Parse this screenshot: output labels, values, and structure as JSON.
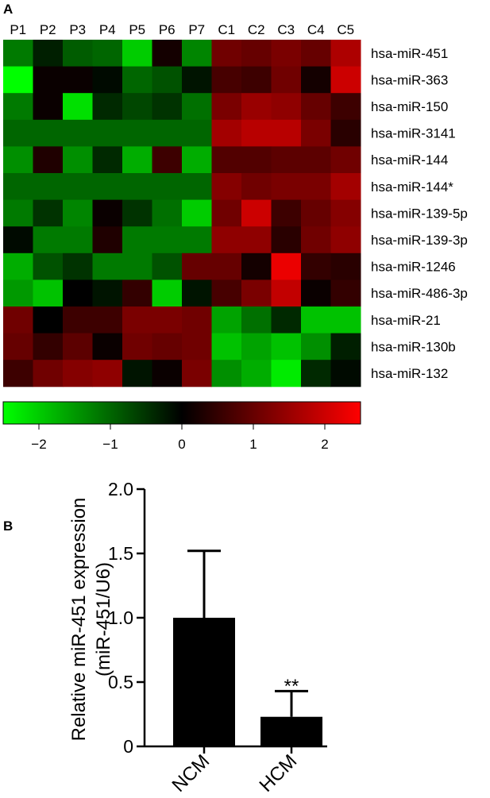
{
  "panels": {
    "a": "A",
    "b": "B"
  },
  "chart_data": [
    {
      "type": "heatmap",
      "columns": [
        "P1",
        "P2",
        "P3",
        "P4",
        "P5",
        "P6",
        "P7",
        "C1",
        "C2",
        "C3",
        "C4",
        "C5"
      ],
      "rows": [
        "hsa-miR-451",
        "hsa-miR-363",
        "hsa-miR-150",
        "hsa-miR-3141",
        "hsa-miR-144",
        "hsa-miR-144*",
        "hsa-miR-139-5p",
        "hsa-miR-139-3p",
        "hsa-miR-1246",
        "hsa-miR-486-3p",
        "hsa-miR-21",
        "hsa-miR-130b",
        "hsa-miR-132"
      ],
      "values": [
        [
          -1.2,
          -0.3,
          -0.9,
          -1.0,
          -2.0,
          0.2,
          -1.3,
          1.1,
          1.0,
          1.2,
          1.0,
          1.7
        ],
        [
          -2.5,
          0.1,
          0.1,
          -0.1,
          -1.0,
          -0.8,
          -0.2,
          0.7,
          0.6,
          1.1,
          0.2,
          2.0
        ],
        [
          -1.2,
          0.1,
          -2.2,
          -0.4,
          -0.7,
          -0.5,
          -1.1,
          1.2,
          1.5,
          1.4,
          1.0,
          0.6
        ],
        [
          -1.0,
          -1.0,
          -1.0,
          -1.0,
          -1.0,
          -1.0,
          -1.0,
          1.6,
          1.8,
          1.8,
          1.2,
          0.4
        ],
        [
          -1.4,
          0.3,
          -1.4,
          -0.4,
          -1.7,
          0.6,
          -1.7,
          0.8,
          0.8,
          0.9,
          0.9,
          1.1
        ],
        [
          -1.0,
          -1.0,
          -1.0,
          -1.0,
          -1.0,
          -1.0,
          -1.0,
          1.3,
          1.1,
          1.2,
          1.2,
          1.6
        ],
        [
          -1.2,
          -0.5,
          -1.3,
          0.1,
          -0.5,
          -1.1,
          -2.0,
          1.1,
          2.0,
          0.6,
          1.0,
          1.3
        ],
        [
          -0.1,
          -1.2,
          -1.2,
          0.3,
          -1.2,
          -1.2,
          -1.2,
          1.4,
          1.4,
          0.4,
          1.1,
          1.4
        ],
        [
          -1.7,
          -0.8,
          -0.5,
          -1.2,
          -1.2,
          -0.8,
          1.0,
          1.0,
          0.2,
          2.3,
          0.5,
          0.4
        ],
        [
          -1.5,
          -1.9,
          0.0,
          -0.2,
          0.5,
          -2.0,
          -0.2,
          0.7,
          1.2,
          1.9,
          0.1,
          0.5
        ],
        [
          1.1,
          0.0,
          0.6,
          0.6,
          1.2,
          1.2,
          1.1,
          -1.6,
          -1.1,
          -0.4,
          -1.9,
          -1.9
        ],
        [
          1.0,
          0.5,
          0.9,
          0.1,
          1.1,
          1.0,
          1.1,
          -1.9,
          -1.6,
          -1.9,
          -1.4,
          -0.3
        ],
        [
          0.6,
          1.1,
          1.3,
          1.4,
          -0.2,
          0.1,
          1.2,
          -1.4,
          -1.7,
          -2.3,
          -0.4,
          -0.1
        ]
      ],
      "colorbar": {
        "min": -2.5,
        "max": 2.5,
        "ticks": [
          -2,
          -1,
          0,
          1,
          2
        ],
        "tick_labels": [
          "−2",
          "−1",
          "0",
          "1",
          "2"
        ]
      },
      "colors": {
        "low": "#00ff00",
        "mid": "#000000",
        "high": "#ff0000"
      }
    },
    {
      "type": "bar",
      "categories": [
        "NCM",
        "HCM"
      ],
      "values": [
        1.0,
        0.23
      ],
      "errors": [
        0.52,
        0.2
      ],
      "ylabel_line1": "Relative miR-451 expression",
      "ylabel_line2": "(miR-451/U6)",
      "ylim": [
        0,
        2.0
      ],
      "yticks": [
        0,
        0.5,
        1.0,
        1.5,
        2.0
      ],
      "ytick_labels": [
        "0",
        "0.5",
        "1.0",
        "1.5",
        "2.0"
      ],
      "annotation": "**",
      "bar_color": "#000000"
    }
  ]
}
